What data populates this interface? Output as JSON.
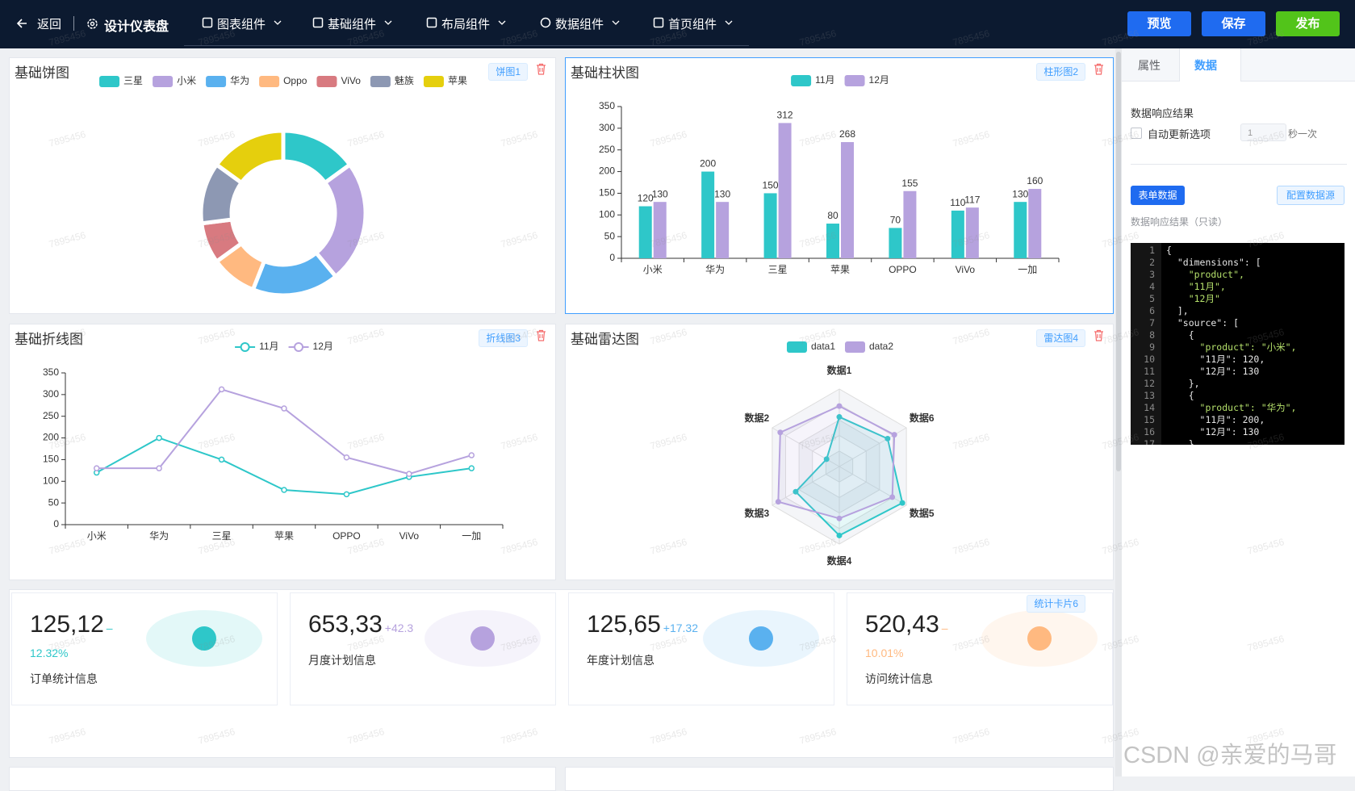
{
  "header": {
    "back": "返回",
    "title": "设计仪表盘",
    "menus": [
      "图表组件",
      "基础组件",
      "布局组件",
      "数据组件",
      "首页组件"
    ],
    "buttons": [
      "预览",
      "保存",
      "发布"
    ]
  },
  "watermark": "7895456",
  "chart_data": [
    {
      "type": "pie",
      "title": "基础饼图",
      "tag": "饼图1",
      "categories": [
        "三星",
        "小米",
        "华为",
        "Oppo",
        "ViVo",
        "魅族",
        "苹果"
      ],
      "values": [
        15,
        24,
        17,
        9,
        8,
        12,
        15
      ],
      "colors": [
        "#2ec7c9",
        "#b6a2de",
        "#5ab1ef",
        "#ffb980",
        "#d87a80",
        "#8d98b3",
        "#e5cf0d"
      ]
    },
    {
      "type": "bar",
      "title": "基础柱状图",
      "tag": "柱形图2",
      "categories": [
        "小米",
        "华为",
        "三星",
        "苹果",
        "OPPO",
        "ViVo",
        "一加"
      ],
      "series": [
        {
          "name": "11月",
          "color": "#2ec7c9",
          "values": [
            120,
            200,
            150,
            80,
            70,
            110,
            130
          ]
        },
        {
          "name": "12月",
          "color": "#b6a2de",
          "values": [
            130,
            130,
            312,
            268,
            155,
            117,
            160
          ]
        }
      ],
      "ylim": [
        0,
        350
      ],
      "yticks": [
        0,
        50,
        100,
        150,
        200,
        250,
        300,
        350
      ]
    },
    {
      "type": "line",
      "title": "基础折线图",
      "tag": "折线图3",
      "categories": [
        "小米",
        "华为",
        "三星",
        "苹果",
        "OPPO",
        "ViVo",
        "一加"
      ],
      "series": [
        {
          "name": "11月",
          "color": "#2ec7c9",
          "values": [
            120,
            200,
            150,
            80,
            70,
            110,
            130
          ]
        },
        {
          "name": "12月",
          "color": "#b6a2de",
          "values": [
            130,
            130,
            312,
            268,
            155,
            117,
            160
          ]
        }
      ],
      "ylim": [
        0,
        350
      ],
      "yticks": [
        0,
        50,
        100,
        150,
        200,
        250,
        300,
        350
      ]
    },
    {
      "type": "radar",
      "title": "基础雷达图",
      "tag": "雷达图4",
      "indicators": [
        {
          "name": "数据1",
          "max": 100
        },
        {
          "name": "数据2",
          "max": 100
        },
        {
          "name": "数据3",
          "max": 100
        },
        {
          "name": "数据4",
          "max": 100
        },
        {
          "name": "数据5",
          "max": 100
        },
        {
          "name": "数据6",
          "max": 100
        }
      ],
      "series": [
        {
          "name": "data1",
          "color": "#2ec7c9",
          "values": [
            64,
            19,
            65,
            89,
            94,
            72
          ]
        },
        {
          "name": "data2",
          "color": "#b6a2de",
          "values": [
            78,
            88,
            91,
            67,
            79,
            82
          ]
        }
      ]
    }
  ],
  "stat_panel": {
    "tag": "统计卡片6",
    "cards": [
      {
        "value": "125,12",
        "delta": "–",
        "percent": "12.32%",
        "label": "订单统计信息",
        "color": "#2ec7c9"
      },
      {
        "value": "653,33",
        "delta": "+42.3",
        "label": "月度计划信息",
        "color": "#b6a2de"
      },
      {
        "value": "125,65",
        "delta": "+17.32",
        "label": "年度计划信息",
        "color": "#5ab1ef"
      },
      {
        "value": "520,43",
        "delta": "–",
        "percent": "10.01%",
        "label": "访问统计信息",
        "color": "#ffb980"
      }
    ]
  },
  "side_panel": {
    "tabs": [
      "属性",
      "数据"
    ],
    "section": "数据响应结果",
    "auto_update": "自动更新选项",
    "interval": 1,
    "interval_unit": "秒一次",
    "form_button": "表单数据",
    "source_button": "配置数据源",
    "readonly_label": "数据响应结果（只读）",
    "code": [
      {
        "n": 1,
        "text": "{"
      },
      {
        "n": 2,
        "text": "  \"dimensions\": ["
      },
      {
        "n": 3,
        "text": "    \"product\","
      },
      {
        "n": 4,
        "text": "    \"11月\","
      },
      {
        "n": 5,
        "text": "    \"12月\""
      },
      {
        "n": 6,
        "text": "  ],"
      },
      {
        "n": 7,
        "text": "  \"source\": ["
      },
      {
        "n": 8,
        "text": "    {"
      },
      {
        "n": 9,
        "text": "      \"product\": \"小米\","
      },
      {
        "n": 10,
        "text": "      \"11月\": 120,"
      },
      {
        "n": 11,
        "text": "      \"12月\": 130"
      },
      {
        "n": 12,
        "text": "    },"
      },
      {
        "n": 13,
        "text": "    {"
      },
      {
        "n": 14,
        "text": "      \"product\": \"华为\","
      },
      {
        "n": 15,
        "text": "      \"11月\": 200,"
      },
      {
        "n": 16,
        "text": "      \"12月\": 130"
      },
      {
        "n": 17,
        "text": "    },"
      }
    ]
  },
  "credit": "CSDN @亲爱的马哥"
}
